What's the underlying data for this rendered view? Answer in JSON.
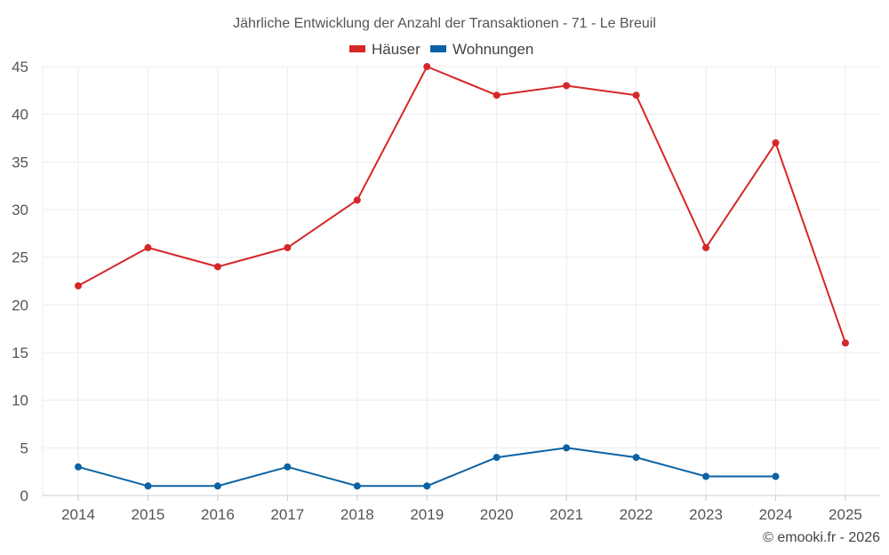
{
  "chart_data": {
    "type": "line",
    "title": "Jährliche Entwicklung der Anzahl der Transaktionen - 71 - Le Breuil",
    "categories": [
      "2014",
      "2015",
      "2016",
      "2017",
      "2018",
      "2019",
      "2020",
      "2021",
      "2022",
      "2023",
      "2024",
      "2025"
    ],
    "yticks": [
      0,
      5,
      10,
      15,
      20,
      25,
      30,
      35,
      40,
      45
    ],
    "ylim": [
      0,
      45
    ],
    "grid": true,
    "legend_position": "top-center",
    "series": [
      {
        "name": "Häuser",
        "color": "#d62728",
        "values": [
          22,
          26,
          24,
          26,
          31,
          45,
          42,
          43,
          42,
          26,
          37,
          16
        ]
      },
      {
        "name": "Wohnungen",
        "color": "#0b62a4",
        "values": [
          3,
          1,
          1,
          3,
          1,
          1,
          4,
          5,
          4,
          2,
          2,
          null
        ]
      }
    ],
    "credit": "© emooki.fr - 2026"
  }
}
